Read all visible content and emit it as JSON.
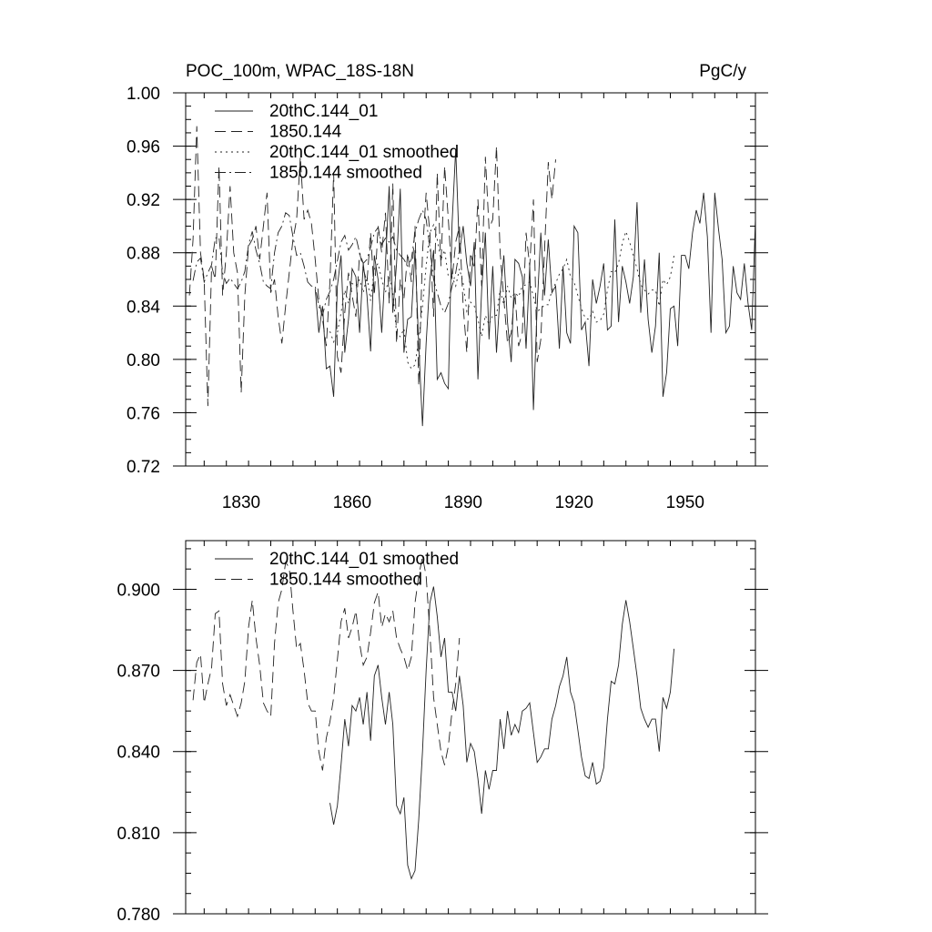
{
  "chart_data": [
    {
      "type": "line",
      "title": "POC_100m, WPAC_18S-18N",
      "units": "PgC/y",
      "xlabel": "",
      "ylabel": "",
      "xlim": [
        1815,
        1969
      ],
      "ylim": [
        0.72,
        1.0
      ],
      "xticks": [
        1830,
        1860,
        1890,
        1920,
        1950
      ],
      "yticks": [
        0.72,
        0.76,
        0.8,
        0.84,
        0.88,
        0.92,
        0.96,
        1.0
      ],
      "ytick_labels": [
        "0.72",
        "0.76",
        "0.80",
        "0.84",
        "0.88",
        "0.92",
        "0.96",
        "1.00"
      ],
      "legend_position": "top-left",
      "series": [
        {
          "name": "20thC.144_01",
          "dash": "solid",
          "x0": 1850,
          "step": 1,
          "values": [
            0.853,
            0.82,
            0.84,
            0.793,
            0.795,
            0.772,
            0.855,
            0.878,
            0.805,
            0.83,
            0.868,
            0.862,
            0.82,
            0.872,
            0.848,
            0.806,
            0.878,
            0.86,
            0.82,
            0.872,
            0.93,
            0.835,
            0.872,
            0.928,
            0.805,
            0.83,
            0.832,
            0.882,
            0.81,
            0.75,
            0.812,
            0.86,
            0.882,
            0.785,
            0.79,
            0.782,
            0.778,
            0.902,
            0.958,
            0.88,
            0.9,
            0.872,
            0.855,
            0.888,
            0.785,
            0.852,
            0.895,
            0.815,
            0.87,
            0.805,
            0.85,
            0.878,
            0.828,
            0.798,
            0.875,
            0.872,
            0.862,
            0.808,
            0.87,
            0.762,
            0.84,
            0.895,
            0.848,
            0.89,
            0.85,
            0.855,
            0.808,
            0.87,
            0.82,
            0.812,
            0.9,
            0.895,
            0.822,
            0.828,
            0.795,
            0.86,
            0.842,
            0.855,
            0.872,
            0.822,
            0.825,
            0.905,
            0.828,
            0.87,
            0.858,
            0.842,
            0.862,
            0.918,
            0.835,
            0.875,
            0.83,
            0.805,
            0.825,
            0.88,
            0.772,
            0.79,
            0.838,
            0.84,
            0.81,
            0.878,
            0.878,
            0.868,
            0.895,
            0.912,
            0.902,
            0.925,
            0.892,
            0.82,
            0.925,
            0.898,
            0.875,
            0.82,
            0.825,
            0.87,
            0.85,
            0.845,
            0.872,
            0.842,
            0.822,
            0.905,
            0.915,
            0.865,
            0.868,
            0.96
          ]
        },
        {
          "name": "1850.144",
          "dash": "long",
          "x0": 1816,
          "step": 1,
          "values": [
            0.848,
            0.89,
            0.975,
            0.88,
            0.86,
            0.765,
            0.87,
            0.86,
            0.945,
            0.848,
            0.88,
            0.93,
            0.88,
            0.865,
            0.775,
            0.848,
            0.885,
            0.89,
            0.9,
            0.875,
            0.9,
            0.925,
            0.85,
            0.86,
            0.832,
            0.812,
            0.84,
            0.865,
            0.89,
            0.905,
            0.952,
            0.905,
            0.912,
            0.902,
            0.875,
            0.845,
            0.83,
            0.81,
            0.858,
            0.94,
            0.802,
            0.79,
            0.835,
            0.865,
            0.848,
            0.832,
            0.88,
            0.868,
            0.858,
            0.895,
            0.848,
            0.9,
            0.88,
            0.91,
            0.842,
            0.932,
            0.812,
            0.86,
            0.845,
            0.88,
            0.858,
            0.9,
            0.78,
            0.88,
            0.925,
            0.895,
            0.832,
            0.94,
            0.87,
            0.945,
            0.905,
            0.86,
            0.888,
            0.9,
            0.84,
            0.805,
            0.88,
            0.868,
            0.92,
            0.855,
            0.952,
            0.898,
            0.905,
            0.96,
            0.88,
            0.845,
            0.812,
            0.82,
            0.85,
            0.81,
            0.82,
            0.895,
            0.87,
            0.92,
            0.798,
            0.815,
            0.882,
            0.948,
            0.92,
            0.95
          ]
        },
        {
          "name": "20thC.144_01 smoothed",
          "dash": "dot",
          "x0": 1854,
          "step": 1,
          "values": [
            0.821,
            0.813,
            0.82,
            0.835,
            0.852,
            0.842,
            0.857,
            0.855,
            0.86,
            0.85,
            0.862,
            0.844,
            0.868,
            0.872,
            0.86,
            0.85,
            0.862,
            0.85,
            0.82,
            0.817,
            0.823,
            0.798,
            0.793,
            0.796,
            0.815,
            0.84,
            0.87,
            0.895,
            0.901,
            0.89,
            0.875,
            0.882,
            0.862,
            0.862,
            0.855,
            0.868,
            0.857,
            0.836,
            0.843,
            0.84,
            0.83,
            0.817,
            0.833,
            0.826,
            0.833,
            0.833,
            0.852,
            0.841,
            0.855,
            0.846,
            0.85,
            0.847,
            0.855,
            0.856,
            0.858,
            0.847,
            0.836,
            0.838,
            0.841,
            0.841,
            0.852,
            0.857,
            0.864,
            0.868,
            0.875,
            0.862,
            0.858,
            0.848,
            0.838,
            0.831,
            0.83,
            0.836,
            0.828,
            0.829,
            0.834,
            0.852,
            0.866,
            0.865,
            0.872,
            0.887,
            0.896,
            0.888,
            0.878,
            0.868,
            0.856,
            0.852,
            0.849,
            0.852,
            0.852,
            0.84,
            0.86,
            0.856,
            0.862,
            0.878
          ]
        },
        {
          "name": "1850.144 smoothed",
          "dash": "dashdot",
          "x0": 1817,
          "step": 1,
          "values": [
            0.859,
            0.873,
            0.876,
            0.858,
            0.865,
            0.871,
            0.891,
            0.892,
            0.865,
            0.857,
            0.861,
            0.857,
            0.853,
            0.858,
            0.866,
            0.886,
            0.896,
            0.882,
            0.872,
            0.858,
            0.855,
            0.853,
            0.88,
            0.895,
            0.9,
            0.91,
            0.908,
            0.892,
            0.878,
            0.88,
            0.87,
            0.858,
            0.855,
            0.855,
            0.84,
            0.833,
            0.845,
            0.851,
            0.86,
            0.874,
            0.888,
            0.893,
            0.882,
            0.886,
            0.892,
            0.88,
            0.872,
            0.875,
            0.884,
            0.895,
            0.899,
            0.886,
            0.891,
            0.888,
            0.892,
            0.882,
            0.878,
            0.875,
            0.87,
            0.875,
            0.895,
            0.905,
            0.912,
            0.905,
            0.884,
            0.86,
            0.85,
            0.84,
            0.835,
            0.842,
            0.855,
            0.865,
            0.882
          ]
        }
      ]
    },
    {
      "type": "line",
      "title": "",
      "xlabel": "",
      "ylabel": "",
      "xlim": [
        1815,
        1969
      ],
      "ylim": [
        0.78,
        0.918
      ],
      "xticks": [
        1830,
        1860,
        1890,
        1920,
        1950
      ],
      "yticks": [
        0.78,
        0.81,
        0.84,
        0.87,
        0.9
      ],
      "ytick_labels": [
        "0.780",
        "0.810",
        "0.840",
        "0.870",
        "0.900"
      ],
      "legend_position": "top-left",
      "series": [
        {
          "name": "20thC.144_01 smoothed",
          "dash": "solid",
          "x0": 1854,
          "step": 1,
          "values": [
            0.821,
            0.813,
            0.82,
            0.835,
            0.852,
            0.842,
            0.857,
            0.855,
            0.86,
            0.85,
            0.862,
            0.844,
            0.868,
            0.872,
            0.86,
            0.85,
            0.862,
            0.85,
            0.82,
            0.817,
            0.823,
            0.798,
            0.793,
            0.796,
            0.815,
            0.84,
            0.87,
            0.895,
            0.901,
            0.89,
            0.875,
            0.882,
            0.862,
            0.862,
            0.855,
            0.868,
            0.857,
            0.836,
            0.843,
            0.84,
            0.83,
            0.817,
            0.833,
            0.826,
            0.833,
            0.833,
            0.852,
            0.841,
            0.855,
            0.846,
            0.85,
            0.847,
            0.855,
            0.856,
            0.858,
            0.847,
            0.836,
            0.838,
            0.841,
            0.841,
            0.852,
            0.857,
            0.864,
            0.868,
            0.875,
            0.862,
            0.858,
            0.848,
            0.838,
            0.831,
            0.83,
            0.836,
            0.828,
            0.829,
            0.834,
            0.852,
            0.866,
            0.865,
            0.872,
            0.887,
            0.896,
            0.888,
            0.878,
            0.868,
            0.856,
            0.852,
            0.849,
            0.852,
            0.852,
            0.84,
            0.86,
            0.856,
            0.862,
            0.878
          ]
        },
        {
          "name": "1850.144 smoothed",
          "dash": "long",
          "x0": 1817,
          "step": 1,
          "values": [
            0.859,
            0.873,
            0.876,
            0.858,
            0.865,
            0.871,
            0.891,
            0.892,
            0.865,
            0.857,
            0.861,
            0.857,
            0.853,
            0.858,
            0.866,
            0.886,
            0.896,
            0.882,
            0.872,
            0.858,
            0.855,
            0.853,
            0.88,
            0.895,
            0.9,
            0.91,
            0.908,
            0.892,
            0.878,
            0.88,
            0.87,
            0.858,
            0.855,
            0.855,
            0.84,
            0.833,
            0.845,
            0.851,
            0.86,
            0.874,
            0.888,
            0.893,
            0.882,
            0.886,
            0.892,
            0.88,
            0.872,
            0.875,
            0.884,
            0.895,
            0.899,
            0.886,
            0.891,
            0.888,
            0.892,
            0.882,
            0.878,
            0.875,
            0.87,
            0.875,
            0.895,
            0.905,
            0.912,
            0.905,
            0.884,
            0.86,
            0.85,
            0.84,
            0.835,
            0.842,
            0.855,
            0.865,
            0.882
          ]
        }
      ]
    }
  ]
}
